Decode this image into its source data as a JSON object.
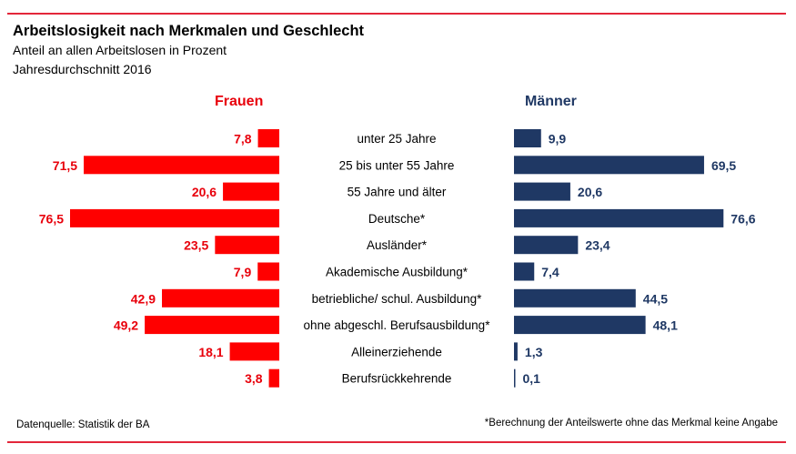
{
  "header": {
    "title": "Arbeitslosigkeit nach Merkmalen und Geschlecht",
    "subtitle1": "Anteil an allen Arbeitslosen in Prozent",
    "subtitle2": "Jahresdurchschnitt 2016"
  },
  "footer": {
    "source": "Datenquelle:  Statistik der BA",
    "note": "*Berechnung der Anteilswerte ohne das Merkmal keine Angabe"
  },
  "colors": {
    "female": "#ff0000",
    "female_label": "#e8000b",
    "male": "#1f3864",
    "rule": "#e3263a"
  },
  "chart_data": {
    "type": "bar",
    "orientation": "horizontal-butterfly",
    "categories": [
      "unter 25 Jahre",
      "25 bis unter 55 Jahre",
      "55 Jahre und älter",
      "Deutsche*",
      "Ausländer*",
      "Akademische Ausbildung*",
      "betriebliche/ schul. Ausbildung*",
      "ohne abgeschl. Berufsausbildung*",
      "Alleinerziehende",
      "Berufsrückkehrende"
    ],
    "series": [
      {
        "name": "Frauen",
        "values": [
          7.8,
          71.5,
          20.6,
          76.5,
          23.5,
          7.9,
          42.9,
          49.2,
          18.1,
          3.8
        ]
      },
      {
        "name": "Männer",
        "values": [
          9.9,
          69.5,
          20.6,
          76.6,
          23.4,
          7.4,
          44.5,
          48.1,
          1.3,
          0.1
        ]
      }
    ],
    "value_labels": {
      "Frauen": [
        "7,8",
        "71,5",
        "20,6",
        "76,5",
        "23,5",
        "7,9",
        "42,9",
        "49,2",
        "18,1",
        "3,8"
      ],
      "Männer": [
        "9,9",
        "69,5",
        "20,6",
        "76,6",
        "23,4",
        "7,4",
        "44,5",
        "48,1",
        "1,3",
        "0,1"
      ]
    },
    "xlim": [
      0,
      80
    ]
  }
}
